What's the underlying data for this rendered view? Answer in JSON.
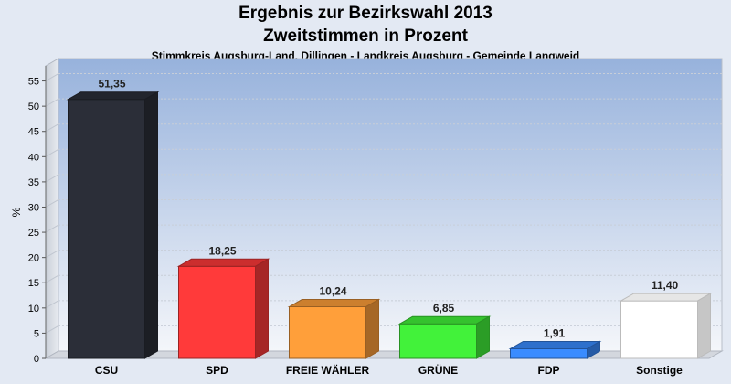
{
  "header": {
    "title": "Ergebnis zur Bezirkswahl 2013",
    "title2": "Zweitstimmen in Prozent",
    "subtitle": "Stimmkreis Augsburg-Land, Dillingen - Landkreis Augsburg - Gemeinde Langweid"
  },
  "chart_data": {
    "type": "bar",
    "title": "Ergebnis zur Bezirkswahl 2013 Zweitstimmen in Prozent",
    "subtitle": "Stimmkreis Augsburg-Land, Dillingen - Landkreis Augsburg - Gemeinde Langweid",
    "ylabel": "%",
    "xlabel": "",
    "ylim": [
      0,
      58
    ],
    "yticks": [
      0,
      5,
      10,
      15,
      20,
      25,
      30,
      35,
      40,
      45,
      50,
      55
    ],
    "categories": [
      "CSU",
      "SPD",
      "FREIE WÄHLER",
      "GRÜNE",
      "FDP",
      "Sonstige"
    ],
    "values": [
      51.35,
      18.25,
      10.24,
      6.85,
      1.91,
      11.4
    ],
    "value_labels": [
      "51,35",
      "18,25",
      "10,24",
      "6,85",
      "1,91",
      "11,40"
    ],
    "colors": [
      "#2b2e38",
      "#ff3a3a",
      "#ff9f3a",
      "#42f23a",
      "#3a8cff",
      "#ffffff"
    ],
    "grid": true,
    "legend": "none"
  }
}
